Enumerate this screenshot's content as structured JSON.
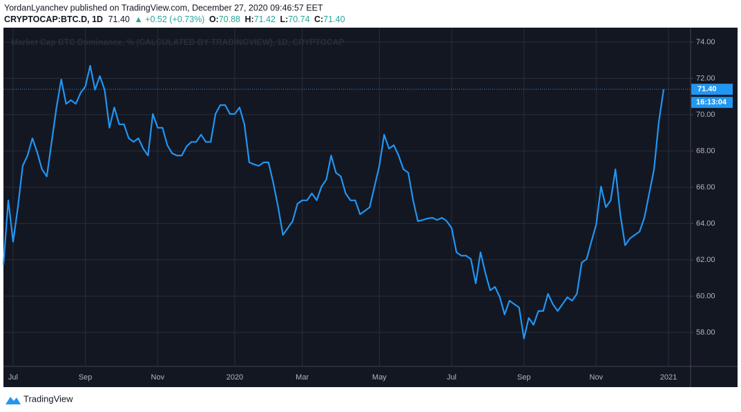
{
  "header": {
    "published": "YordanLyanchev published on TradingView.com, December 27, 2020 09:46:57 EET",
    "symbol": "CRYPTOCAP:BTC.D, 1D",
    "last": "71.40",
    "change": "▲ +0.52 (+0.73%)",
    "ohlc": [
      {
        "label": "O:",
        "value": "70.88"
      },
      {
        "label": "H:",
        "value": "71.42"
      },
      {
        "label": "L:",
        "value": "70.74"
      },
      {
        "label": "C:",
        "value": "71.40"
      }
    ]
  },
  "chart_data": {
    "type": "line",
    "title": "Market Cap BTC Dominance, % (CALCULATED BY TRADINGVIEW), 1D, CRYPTOCAP",
    "categories": [
      null,
      null,
      "Jul",
      null,
      null,
      null,
      null,
      null,
      null,
      null,
      null,
      null,
      null,
      null,
      null,
      null,
      null,
      "Sep",
      null,
      null,
      null,
      null,
      null,
      null,
      null,
      null,
      null,
      null,
      null,
      null,
      null,
      null,
      "Nov",
      null,
      null,
      null,
      null,
      null,
      null,
      null,
      null,
      null,
      null,
      null,
      null,
      null,
      null,
      null,
      "2020",
      null,
      null,
      null,
      null,
      null,
      null,
      null,
      null,
      null,
      null,
      null,
      null,
      null,
      "Mar",
      null,
      null,
      null,
      null,
      null,
      null,
      null,
      null,
      null,
      null,
      null,
      null,
      null,
      null,
      null,
      "May",
      null,
      null,
      null,
      null,
      null,
      null,
      null,
      null,
      null,
      null,
      null,
      null,
      null,
      null,
      "Jul",
      null,
      null,
      null,
      null,
      null,
      null,
      null,
      null,
      null,
      null,
      null,
      null,
      null,
      null,
      "Sep",
      null,
      null,
      null,
      null,
      null,
      null,
      null,
      null,
      null,
      null,
      null,
      null,
      null,
      null,
      "Nov",
      null,
      null,
      null,
      null,
      null,
      null,
      null,
      null,
      null,
      null,
      null,
      null,
      null,
      null,
      "2021"
    ],
    "series": [
      {
        "name": "CRYPTOCAP:BTC.D",
        "color": "#2196f3",
        "values": [
          61.73,
          65.28,
          63.0,
          64.9,
          67.18,
          67.75,
          68.7,
          67.94,
          66.99,
          66.6,
          68.5,
          70.4,
          71.94,
          70.6,
          70.8,
          70.6,
          71.2,
          71.56,
          72.7,
          71.37,
          72.13,
          71.37,
          69.28,
          70.4,
          69.47,
          69.47,
          68.7,
          68.5,
          68.7,
          68.13,
          67.75,
          70.04,
          69.28,
          69.28,
          68.32,
          67.87,
          67.75,
          67.75,
          68.25,
          68.5,
          68.5,
          68.9,
          68.5,
          68.5,
          70.04,
          70.53,
          70.53,
          70.04,
          70.04,
          70.4,
          69.47,
          67.37,
          67.26,
          67.18,
          67.37,
          67.37,
          66.23,
          64.9,
          63.37,
          63.75,
          64.13,
          65.09,
          65.28,
          65.28,
          65.66,
          65.28,
          66.04,
          66.42,
          67.75,
          66.8,
          66.6,
          65.66,
          65.28,
          65.28,
          64.51,
          64.7,
          64.9,
          66.04,
          67.18,
          68.9,
          68.13,
          68.32,
          67.75,
          66.99,
          66.8,
          65.28,
          64.13,
          64.2,
          64.28,
          64.32,
          64.2,
          64.32,
          64.13,
          63.75,
          62.42,
          62.23,
          62.23,
          62.04,
          60.7,
          62.42,
          61.28,
          60.32,
          60.51,
          59.94,
          58.99,
          59.75,
          59.56,
          59.37,
          57.66,
          58.8,
          58.42,
          59.18,
          59.18,
          60.13,
          59.56,
          59.18,
          59.56,
          59.94,
          59.75,
          60.13,
          61.85,
          62.04,
          63.0,
          63.94,
          66.04,
          64.9,
          65.28,
          66.99,
          64.51,
          62.8,
          63.18,
          63.37,
          63.56,
          64.32,
          65.66,
          66.99,
          69.6,
          71.4,
          null
        ]
      }
    ],
    "price_label": "71.40",
    "countdown": "16:13:04",
    "ylim": [
      56.13,
      74.72
    ],
    "yticks": [
      {
        "value": 58,
        "label": "58.00"
      },
      {
        "value": 60,
        "label": "60.00"
      },
      {
        "value": 62,
        "label": "62.00"
      },
      {
        "value": 64,
        "label": "64.00"
      },
      {
        "value": 66,
        "label": "66.00"
      },
      {
        "value": 68,
        "label": "68.00"
      },
      {
        "value": 70,
        "label": "70.00"
      },
      {
        "value": 72,
        "label": "72.00"
      },
      {
        "value": 74,
        "label": "74.00"
      }
    ],
    "grid": true
  },
  "footer": {
    "brand": "TradingView"
  }
}
